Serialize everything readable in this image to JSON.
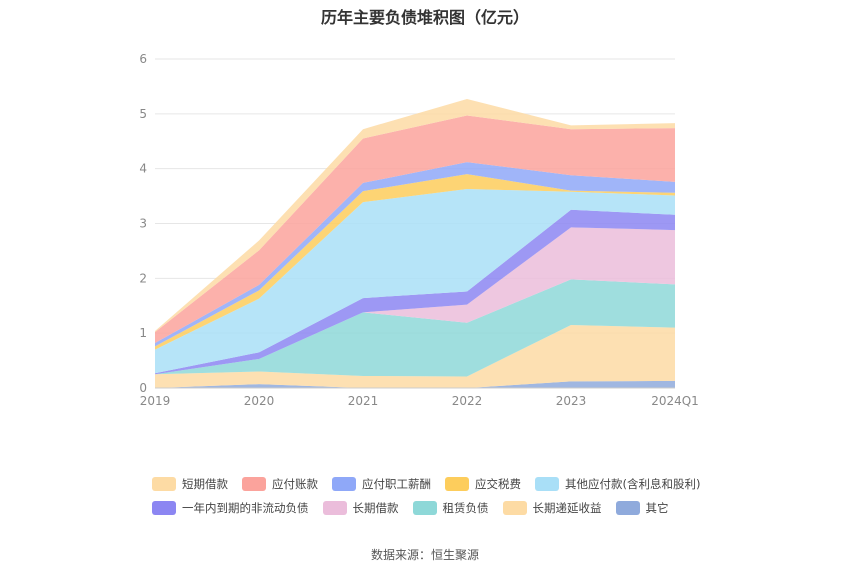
{
  "title": "历年主要负债堆积图（亿元）",
  "source": "数据来源：恒生聚源",
  "chart_data": {
    "type": "area",
    "stacked": true,
    "categories": [
      "2019",
      "2020",
      "2021",
      "2022",
      "2023",
      "2024Q1"
    ],
    "ylim": [
      0,
      6
    ],
    "yticks": [
      0,
      1,
      2,
      3,
      4,
      5,
      6
    ],
    "grid": true,
    "legend_position": "bottom",
    "series": [
      {
        "name": "其它",
        "color": "#8FAADC",
        "values": [
          0.0,
          0.07,
          0.0,
          0.0,
          0.12,
          0.13
        ]
      },
      {
        "name": "长期递延收益",
        "color": "#FDDBA4",
        "values": [
          0.25,
          0.23,
          0.22,
          0.21,
          1.03,
          0.97
        ]
      },
      {
        "name": "租赁负债",
        "color": "#8ED8D8",
        "values": [
          0.0,
          0.23,
          1.16,
          0.98,
          0.83,
          0.79
        ]
      },
      {
        "name": "长期借款",
        "color": "#EBBDDB",
        "values": [
          0.0,
          0.0,
          0.0,
          0.33,
          0.95,
          0.99
        ]
      },
      {
        "name": "一年内到期的非流动负债",
        "color": "#8C86F2",
        "values": [
          0.02,
          0.12,
          0.26,
          0.24,
          0.32,
          0.28
        ]
      },
      {
        "name": "其他应付款(含利息和股利)",
        "color": "#A9DFF7",
        "values": [
          0.43,
          0.98,
          1.75,
          1.87,
          0.33,
          0.35
        ]
      },
      {
        "name": "应交税费",
        "color": "#FDCD5C",
        "values": [
          0.06,
          0.15,
          0.2,
          0.27,
          0.02,
          0.05
        ]
      },
      {
        "name": "应付职工薪酬",
        "color": "#8FA8F8",
        "values": [
          0.06,
          0.1,
          0.15,
          0.22,
          0.28,
          0.2
        ]
      },
      {
        "name": "应付账款",
        "color": "#FBA39C",
        "values": [
          0.2,
          0.63,
          0.81,
          0.85,
          0.84,
          0.98
        ]
      },
      {
        "name": "短期借款",
        "color": "#FDDBA4",
        "values": [
          0.02,
          0.18,
          0.17,
          0.3,
          0.07,
          0.09
        ]
      }
    ]
  },
  "legend": {
    "rows": [
      [
        {
          "label": "短期借款",
          "color": "#FDDBA4"
        },
        {
          "label": "应付账款",
          "color": "#FBA39C"
        },
        {
          "label": "应付职工薪酬",
          "color": "#8FA8F8"
        },
        {
          "label": "应交税费",
          "color": "#FDCD5C"
        },
        {
          "label": "其他应付款(含利息和股利)",
          "color": "#A9DFF7"
        }
      ],
      [
        {
          "label": "一年内到期的非流动负债",
          "color": "#8C86F2"
        },
        {
          "label": "长期借款",
          "color": "#EBBDDB"
        },
        {
          "label": "租赁负债",
          "color": "#8ED8D8"
        },
        {
          "label": "长期递延收益",
          "color": "#FDDBA4"
        },
        {
          "label": "其它",
          "color": "#8FAADC"
        }
      ]
    ]
  }
}
